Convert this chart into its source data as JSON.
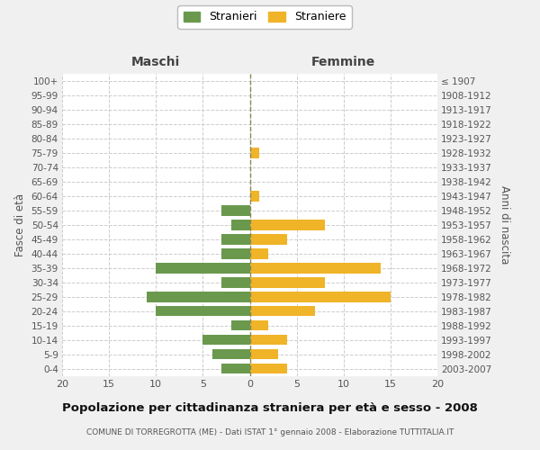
{
  "age_groups": [
    "0-4",
    "5-9",
    "10-14",
    "15-19",
    "20-24",
    "25-29",
    "30-34",
    "35-39",
    "40-44",
    "45-49",
    "50-54",
    "55-59",
    "60-64",
    "65-69",
    "70-74",
    "75-79",
    "80-84",
    "85-89",
    "90-94",
    "95-99",
    "100+"
  ],
  "birth_years": [
    "2003-2007",
    "1998-2002",
    "1993-1997",
    "1988-1992",
    "1983-1987",
    "1978-1982",
    "1973-1977",
    "1968-1972",
    "1963-1967",
    "1958-1962",
    "1953-1957",
    "1948-1952",
    "1943-1947",
    "1938-1942",
    "1933-1937",
    "1928-1932",
    "1923-1927",
    "1918-1922",
    "1913-1917",
    "1908-1912",
    "≤ 1907"
  ],
  "males": [
    3,
    4,
    5,
    2,
    10,
    11,
    3,
    10,
    3,
    3,
    2,
    3,
    0,
    0,
    0,
    0,
    0,
    0,
    0,
    0,
    0
  ],
  "females": [
    4,
    3,
    4,
    2,
    7,
    15,
    8,
    14,
    2,
    4,
    8,
    0,
    1,
    0,
    0,
    1,
    0,
    0,
    0,
    0,
    0
  ],
  "male_color": "#6a994e",
  "female_color": "#f0b429",
  "title": "Popolazione per cittadinanza straniera per età e sesso - 2008",
  "subtitle": "COMUNE DI TORREGROTTA (ME) - Dati ISTAT 1° gennaio 2008 - Elaborazione TUTTITALIA.IT",
  "xlabel_left": "Maschi",
  "xlabel_right": "Femmine",
  "ylabel_left": "Fasce di età",
  "ylabel_right": "Anni di nascita",
  "legend_male": "Stranieri",
  "legend_female": "Straniere",
  "xlim": 20,
  "background_color": "#f0f0f0",
  "plot_bg_color": "#ffffff",
  "grid_color": "#cccccc"
}
